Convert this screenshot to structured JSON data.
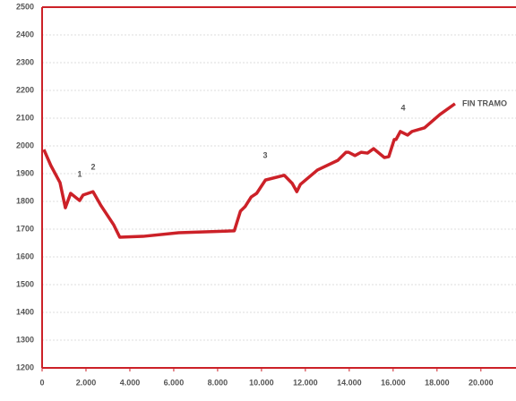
{
  "chart_data": {
    "type": "line",
    "x": [
      80,
      400,
      815,
      1060,
      1300,
      1710,
      1870,
      2320,
      2690,
      3260,
      3540,
      4600,
      6230,
      8760,
      9040,
      9250,
      9530,
      9780,
      10180,
      11040,
      11400,
      11610,
      11770,
      12550,
      13480,
      13850,
      13970,
      14260,
      14540,
      14830,
      15110,
      15600,
      15800,
      16050,
      16130,
      16330,
      16660,
      16860,
      17430,
      18130,
      18820
    ],
    "series": [
      {
        "color": "#cc2128",
        "values": [
          1987,
          1929,
          1868,
          1777,
          1829,
          1803,
          1823,
          1835,
          1784,
          1716,
          1671,
          1674,
          1687,
          1694,
          1765,
          1781,
          1816,
          1829,
          1877,
          1894,
          1865,
          1835,
          1861,
          1913,
          1948,
          1977,
          1977,
          1965,
          1977,
          1974,
          1990,
          1958,
          1961,
          2023,
          2023,
          2052,
          2039,
          2052,
          2065,
          2113,
          2152
        ]
      }
    ],
    "annotations": [
      "1",
      "2",
      "3",
      "4",
      "FIN TRAMO"
    ],
    "xlim": [
      0,
      21600
    ],
    "xticks": [
      0,
      {
        "value": 2000,
        "label": "2.000"
      },
      {
        "value": 4000,
        "label": "4.000"
      },
      {
        "value": 6000,
        "label": "6.000"
      },
      {
        "value": 8000,
        "label": "8.000"
      },
      {
        "value": 10000,
        "label": "10.000"
      },
      {
        "value": 12000,
        "label": "12.000"
      },
      {
        "value": 14000,
        "label": "14.000"
      },
      {
        "value": 16000,
        "label": "16.000"
      },
      {
        "value": 18000,
        "label": "18.000"
      },
      {
        "value": 20000,
        "label": "20.000"
      }
    ],
    "ylim": [
      1200,
      2500
    ],
    "yticks": [
      1200,
      1300,
      1400,
      1500,
      1600,
      1700,
      1800,
      1900,
      2000,
      2100,
      2200,
      2300,
      2400,
      2500
    ],
    "grid": true
  }
}
